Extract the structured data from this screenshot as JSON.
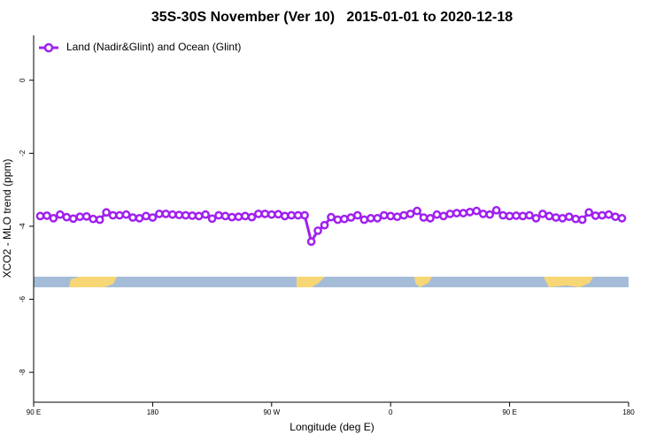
{
  "chart_data": {
    "type": "line",
    "title": "35S-30S November (Ver 10)   2015-01-01 to 2020-12-18",
    "x_label": "Longitude (deg E)",
    "y_label": "XCO2 - MLO trend (ppm)",
    "x": [
      95,
      100,
      105,
      110,
      115,
      120,
      125,
      130,
      135,
      140,
      145,
      150,
      155,
      160,
      165,
      170,
      175,
      180,
      185,
      190,
      195,
      200,
      205,
      210,
      215,
      220,
      225,
      230,
      235,
      240,
      245,
      250,
      255,
      260,
      265,
      270,
      275,
      280,
      285,
      290,
      295,
      300,
      305,
      310,
      315,
      320,
      325,
      330,
      335,
      340,
      345,
      350,
      355,
      360,
      365,
      370,
      375,
      380,
      385,
      390,
      395,
      400,
      405,
      410,
      415,
      420,
      425,
      430,
      435,
      440,
      445,
      450,
      455,
      460,
      465,
      470,
      475,
      480,
      485,
      490,
      495,
      500,
      505,
      510,
      515,
      520,
      525,
      530,
      535
    ],
    "series": [
      {
        "name": "Land (Nadir&Glint) and Ocean (Glint)",
        "color": "#a020f0",
        "values": [
          -3.72,
          -3.71,
          -3.78,
          -3.68,
          -3.75,
          -3.79,
          -3.74,
          -3.73,
          -3.8,
          -3.82,
          -3.62,
          -3.7,
          -3.7,
          -3.68,
          -3.76,
          -3.78,
          -3.72,
          -3.76,
          -3.66,
          -3.66,
          -3.68,
          -3.69,
          -3.7,
          -3.71,
          -3.72,
          -3.68,
          -3.79,
          -3.7,
          -3.72,
          -3.75,
          -3.74,
          -3.72,
          -3.75,
          -3.66,
          -3.66,
          -3.68,
          -3.67,
          -3.72,
          -3.7,
          -3.7,
          -3.7,
          -4.42,
          -4.12,
          -3.97,
          -3.75,
          -3.82,
          -3.8,
          -3.76,
          -3.7,
          -3.82,
          -3.78,
          -3.78,
          -3.7,
          -3.72,
          -3.74,
          -3.7,
          -3.66,
          -3.58,
          -3.76,
          -3.78,
          -3.68,
          -3.72,
          -3.66,
          -3.64,
          -3.64,
          -3.61,
          -3.58,
          -3.66,
          -3.68,
          -3.56,
          -3.7,
          -3.72,
          -3.71,
          -3.72,
          -3.7,
          -3.78,
          -3.66,
          -3.72,
          -3.76,
          -3.78,
          -3.74,
          -3.8,
          -3.82,
          -3.62,
          -3.71,
          -3.7,
          -3.68,
          -3.74,
          -3.78
        ]
      }
    ],
    "xlim": [
      90,
      540
    ],
    "xticks": [
      {
        "value": 90,
        "label": "90 E"
      },
      180,
      {
        "value": 270,
        "label": "90 W"
      },
      {
        "value": 360,
        "label": "0"
      },
      {
        "value": 450,
        "label": "90 E"
      },
      {
        "value": 540,
        "label": "180"
      }
    ],
    "ylim": [
      -8.82,
      1.23
    ],
    "yticks": [
      0,
      -2,
      -4,
      -6,
      -8
    ],
    "legend": "top-left"
  }
}
